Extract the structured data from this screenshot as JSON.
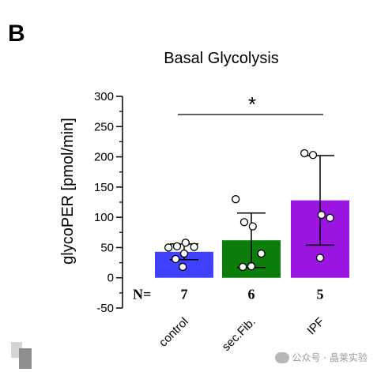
{
  "panel_label": "B",
  "watermark": "公众号 · 晶莱实验",
  "chart_data": {
    "type": "bar",
    "title": "Basal Glycolysis",
    "ylabel": "glycoPER [pmol/min]",
    "xlabel": "",
    "ylim": [
      -50,
      300
    ],
    "yticks": [
      -50,
      0,
      50,
      100,
      150,
      200,
      250,
      300
    ],
    "categories": [
      "control",
      "sec.Fib.",
      "IPF"
    ],
    "values": [
      43,
      62,
      128
    ],
    "sd": [
      13,
      45,
      74
    ],
    "colors": [
      "#4040ff",
      "#0a7d0a",
      "#9b15e0"
    ],
    "points": [
      [
        50,
        52,
        58,
        51,
        40,
        31,
        18
      ],
      [
        130,
        92,
        85,
        40,
        19,
        18
      ],
      [
        206,
        203,
        104,
        99,
        33
      ]
    ],
    "n_label": "N=",
    "n_values": [
      "7",
      "6",
      "5"
    ],
    "significance": {
      "label": "*",
      "from": "control",
      "to": "IPF"
    }
  }
}
